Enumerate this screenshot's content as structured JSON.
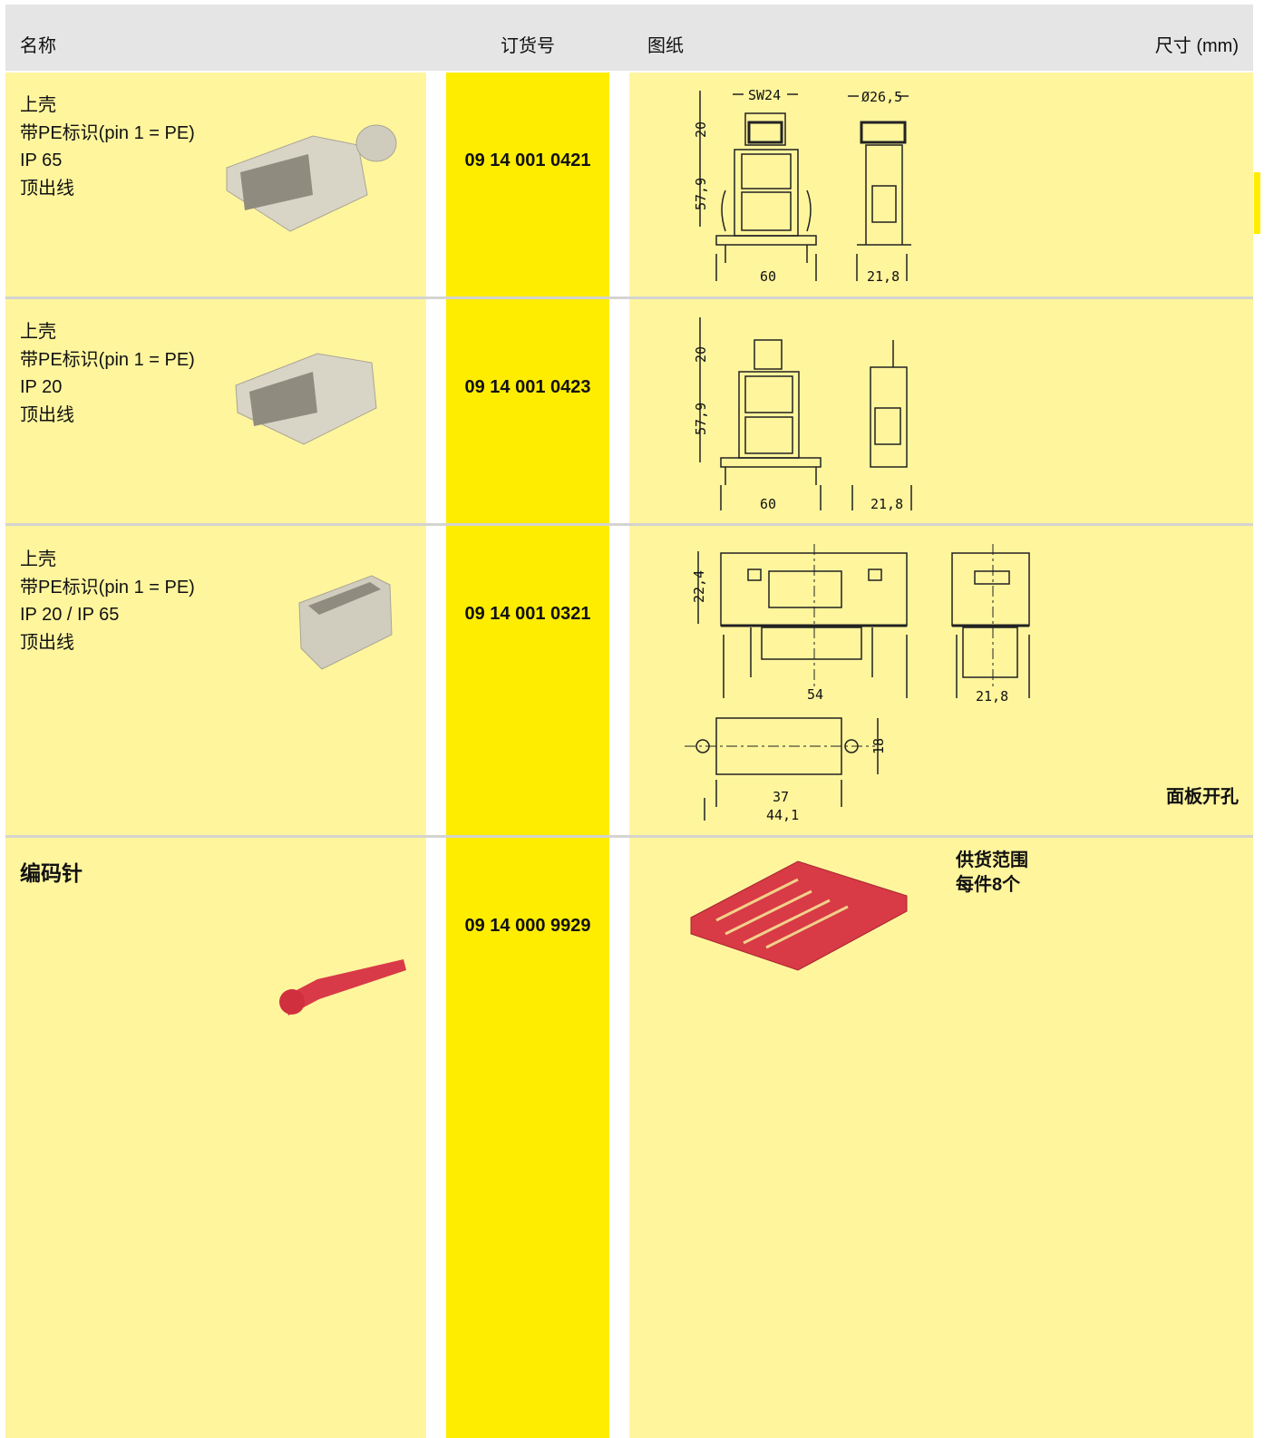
{
  "header": {
    "name": "名称",
    "order_no": "订货号",
    "drawing": "图纸",
    "dimensions": "尺寸 (mm)"
  },
  "rows": [
    {
      "name": [
        "上壳",
        "带PE标识(pin 1 = PE)",
        "IP 65",
        "顶出线"
      ],
      "order_no": "09 14 001 0421",
      "drawing_labels": [
        "SW24",
        "Ø26,5",
        "20",
        "57,9",
        "60",
        "21,8"
      ]
    },
    {
      "name": [
        "上壳",
        "带PE标识(pin 1 = PE)",
        "IP 20",
        "顶出线"
      ],
      "order_no": "09 14 001 0423",
      "drawing_labels": [
        "20",
        "57,9",
        "60",
        "21,8"
      ]
    },
    {
      "name": [
        "上壳",
        "带PE标识(pin 1 = PE)",
        "IP 20 / IP 65",
        "顶出线"
      ],
      "order_no": "09 14 001 0321",
      "drawing_labels": [
        "22,4",
        "54",
        "21,8",
        "18",
        "37",
        "44,1"
      ],
      "note": "面板开孔"
    },
    {
      "name": [
        "编码针"
      ],
      "order_no": "09 14 000 9929",
      "note": [
        "供货范围",
        "每件8个"
      ]
    }
  ]
}
